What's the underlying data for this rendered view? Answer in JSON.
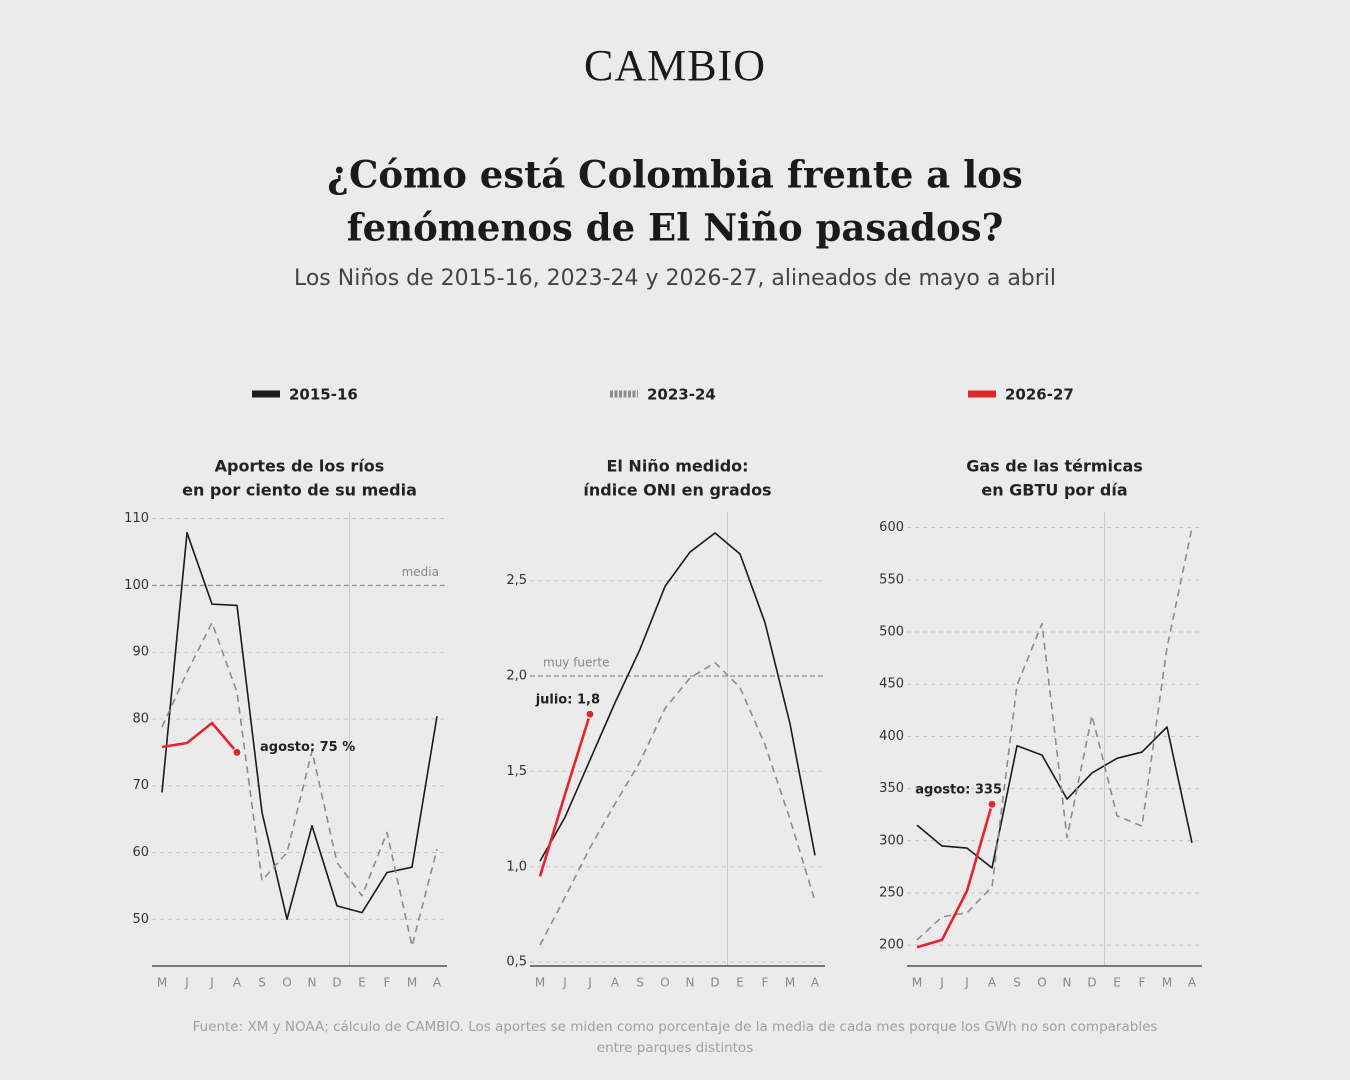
{
  "brand": "CAMBIO",
  "title": [
    "¿Cómo está Colombia frente a los",
    "fenómenos de El Niño pasados?"
  ],
  "subtitle": "Los Niños de 2015-16, 2023-24 y 2026-27, alineados de mayo a abril",
  "source": "Fuente: XM y NOAA; cálculo de CAMBIO. Los aportes se miden como porcentaje de la media de cada mes porque los GWh no son comparables entre parques distintos",
  "chart_data": [
    {
      "type": "line",
      "title": [
        "Aportes de los ríos",
        "en por ciento de su media"
      ],
      "categories": [
        "M",
        "J",
        "J",
        "A",
        "S",
        "O",
        "N",
        "D",
        "E",
        "F",
        "M",
        "A"
      ],
      "ylim": [
        43,
        111
      ],
      "yticks": [
        50,
        60,
        70,
        80,
        90,
        100,
        110
      ],
      "grid": true,
      "reference_lines": [
        {
          "value": 100,
          "label": "media"
        }
      ],
      "series": [
        {
          "name": "2015-16",
          "color": "#1a1a1a",
          "dash": false,
          "values": [
            69,
            107.9,
            97.2,
            97,
            66,
            50,
            64,
            52,
            51,
            57,
            57.8,
            80.4
          ]
        },
        {
          "name": "2023-24",
          "color": "#8c8c8c",
          "dash": true,
          "values": [
            78.8,
            87,
            94.4,
            84,
            55.8,
            60,
            75.2,
            58.5,
            53.5,
            63,
            46,
            60.5
          ]
        },
        {
          "name": "2026-27",
          "color": "#e3262d",
          "dash": false,
          "values": [
            75.8,
            76.4,
            79.4,
            75,
            null,
            null,
            null,
            null,
            null,
            null,
            null,
            null
          ],
          "value_labels": [
            null,
            null,
            null,
            "agosto: 75 %",
            null,
            null,
            null,
            null,
            null,
            null,
            null,
            null
          ]
        }
      ]
    },
    {
      "type": "line",
      "title": [
        "El Niño medido:",
        "índice ONI en grados"
      ],
      "categories": [
        "M",
        "J",
        "J",
        "A",
        "S",
        "O",
        "N",
        "D",
        "E",
        "F",
        "M",
        "A"
      ],
      "ylim": [
        0.48,
        2.86
      ],
      "yticks": [
        {
          "value": 0.5,
          "label": "0,5"
        },
        {
          "value": 1.0,
          "label": "1,0"
        },
        {
          "value": 1.5,
          "label": "1,5"
        },
        {
          "value": 2.0,
          "label": "2,0"
        },
        {
          "value": 2.5,
          "label": "2,5"
        }
      ],
      "grid": true,
      "reference_lines": [
        {
          "value": 2.0,
          "label": "muy fuerte"
        }
      ],
      "series": [
        {
          "name": "2015-16",
          "color": "#1a1a1a",
          "dash": false,
          "values": [
            1.03,
            1.26,
            1.56,
            1.86,
            2.14,
            2.47,
            2.65,
            2.75,
            2.64,
            2.28,
            1.75,
            1.06
          ]
        },
        {
          "name": "2023-24",
          "color": "#8c8c8c",
          "dash": true,
          "values": [
            0.59,
            0.84,
            1.1,
            1.33,
            1.55,
            1.83,
            1.99,
            2.07,
            1.94,
            1.64,
            1.25,
            0.82
          ]
        },
        {
          "name": "2026-27",
          "color": "#e3262d",
          "dash": false,
          "values": [
            0.95,
            1.38,
            1.8,
            null,
            null,
            null,
            null,
            null,
            null,
            null,
            null,
            null
          ],
          "value_labels": [
            null,
            null,
            "julio: 1,8",
            null,
            null,
            null,
            null,
            null,
            null,
            null,
            null,
            null
          ]
        }
      ]
    },
    {
      "type": "line",
      "title": [
        "Gas de las térmicas",
        "en GBTU por día"
      ],
      "categories": [
        "M",
        "J",
        "J",
        "A",
        "S",
        "O",
        "N",
        "D",
        "E",
        "F",
        "M",
        "A"
      ],
      "ylim": [
        180,
        615
      ],
      "yticks": [
        200,
        250,
        300,
        350,
        400,
        450,
        500,
        550,
        600
      ],
      "grid": true,
      "series": [
        {
          "name": "2015-16",
          "color": "#1a1a1a",
          "dash": false,
          "values": [
            315,
            295,
            293,
            274,
            391,
            382,
            340,
            365,
            379,
            385,
            409,
            298
          ]
        },
        {
          "name": "2023-24",
          "color": "#8c8c8c",
          "dash": true,
          "values": [
            205,
            227,
            231,
            256,
            449,
            508,
            303,
            420,
            324,
            314,
            485,
            600
          ]
        },
        {
          "name": "2026-27",
          "color": "#e3262d",
          "dash": false,
          "values": [
            198,
            205,
            252,
            335,
            null,
            null,
            null,
            null,
            null,
            null,
            null,
            null
          ],
          "value_labels": [
            null,
            null,
            null,
            "agosto: 335",
            null,
            null,
            null,
            null,
            null,
            null,
            null,
            null
          ]
        }
      ]
    }
  ]
}
